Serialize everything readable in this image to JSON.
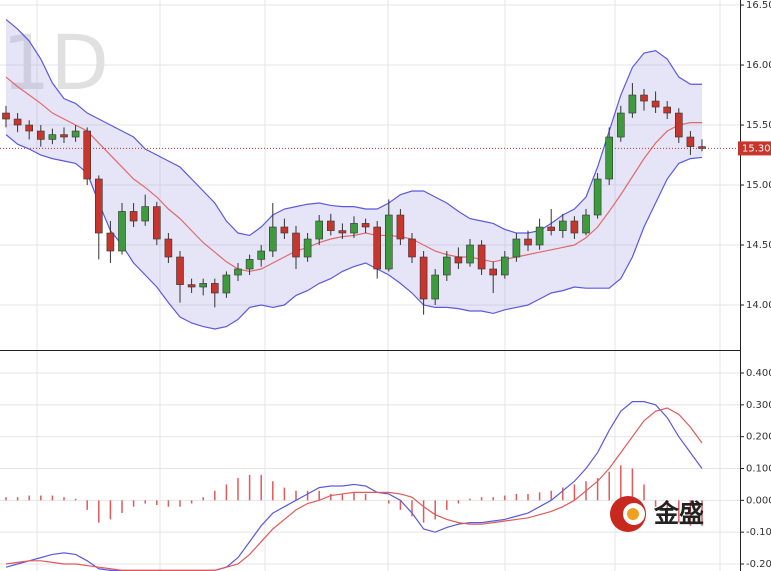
{
  "chart_data": {
    "type": "candlestick",
    "watermark": "1D",
    "logo_text": "金盛",
    "up_color": "#3d9a3d",
    "down_color": "#c8352c",
    "band_color": "#5a5ae0",
    "band_fill": "rgba(160,160,225,0.28)",
    "middle_color": "#e06a6a",
    "ylim": [
      13.625,
      16.542
    ],
    "yticks": [
      {
        "value": 14.0,
        "label": "14.00"
      },
      {
        "value": 14.5,
        "label": "14.50"
      },
      {
        "value": 15.0,
        "label": "15.00"
      },
      {
        "value": 15.5,
        "label": "15.50"
      },
      {
        "value": 16.0,
        "label": "16.00"
      },
      {
        "value": 16.5,
        "label": "16.50"
      }
    ],
    "grid": true,
    "last_price": 15.305,
    "candles": [
      [
        15.6,
        15.66,
        15.48,
        15.55
      ],
      [
        15.55,
        15.6,
        15.44,
        15.5
      ],
      [
        15.5,
        15.54,
        15.38,
        15.45
      ],
      [
        15.45,
        15.5,
        15.32,
        15.38
      ],
      [
        15.38,
        15.47,
        15.34,
        15.42
      ],
      [
        15.42,
        15.48,
        15.35,
        15.4
      ],
      [
        15.4,
        15.5,
        15.36,
        15.45
      ],
      [
        15.45,
        15.48,
        15.0,
        15.05
      ],
      [
        15.05,
        15.08,
        14.38,
        14.6
      ],
      [
        14.6,
        14.7,
        14.35,
        14.45
      ],
      [
        14.45,
        14.85,
        14.42,
        14.78
      ],
      [
        14.78,
        14.85,
        14.65,
        14.7
      ],
      [
        14.7,
        14.92,
        14.66,
        14.82
      ],
      [
        14.82,
        14.86,
        14.5,
        14.55
      ],
      [
        14.55,
        14.6,
        14.35,
        14.4
      ],
      [
        14.4,
        14.45,
        14.02,
        14.17
      ],
      [
        14.17,
        14.22,
        14.1,
        14.15
      ],
      [
        14.15,
        14.22,
        14.08,
        14.18
      ],
      [
        14.18,
        14.22,
        13.98,
        14.1
      ],
      [
        14.1,
        14.28,
        14.06,
        14.25
      ],
      [
        14.25,
        14.35,
        14.2,
        14.3
      ],
      [
        14.3,
        14.42,
        14.25,
        14.38
      ],
      [
        14.38,
        14.5,
        14.32,
        14.45
      ],
      [
        14.45,
        14.85,
        14.4,
        14.65
      ],
      [
        14.65,
        14.72,
        14.55,
        14.6
      ],
      [
        14.6,
        14.66,
        14.3,
        14.4
      ],
      [
        14.4,
        14.6,
        14.36,
        14.55
      ],
      [
        14.55,
        14.75,
        14.5,
        14.7
      ],
      [
        14.7,
        14.76,
        14.58,
        14.62
      ],
      [
        14.62,
        14.68,
        14.55,
        14.6
      ],
      [
        14.6,
        14.74,
        14.56,
        14.68
      ],
      [
        14.68,
        14.72,
        14.6,
        14.65
      ],
      [
        14.65,
        14.7,
        14.22,
        14.3
      ],
      [
        14.3,
        14.88,
        14.28,
        14.75
      ],
      [
        14.75,
        14.8,
        14.5,
        14.55
      ],
      [
        14.55,
        14.6,
        14.35,
        14.4
      ],
      [
        14.4,
        14.45,
        13.92,
        14.05
      ],
      [
        14.05,
        14.3,
        14.0,
        14.25
      ],
      [
        14.25,
        14.45,
        14.2,
        14.4
      ],
      [
        14.4,
        14.48,
        14.3,
        14.35
      ],
      [
        14.35,
        14.55,
        14.32,
        14.5
      ],
      [
        14.5,
        14.54,
        14.25,
        14.3
      ],
      [
        14.3,
        14.36,
        14.1,
        14.25
      ],
      [
        14.25,
        14.45,
        14.22,
        14.4
      ],
      [
        14.4,
        14.6,
        14.36,
        14.55
      ],
      [
        14.55,
        14.62,
        14.45,
        14.5
      ],
      [
        14.5,
        14.72,
        14.46,
        14.65
      ],
      [
        14.65,
        14.8,
        14.58,
        14.62
      ],
      [
        14.62,
        14.76,
        14.56,
        14.7
      ],
      [
        14.7,
        14.74,
        14.55,
        14.6
      ],
      [
        14.6,
        14.8,
        14.58,
        14.75
      ],
      [
        14.75,
        15.1,
        14.72,
        15.05
      ],
      [
        15.05,
        15.48,
        15.0,
        15.4
      ],
      [
        15.4,
        15.66,
        15.36,
        15.6
      ],
      [
        15.6,
        15.85,
        15.56,
        15.75
      ],
      [
        15.75,
        15.8,
        15.62,
        15.7
      ],
      [
        15.7,
        15.78,
        15.6,
        15.65
      ],
      [
        15.65,
        15.7,
        15.55,
        15.6
      ],
      [
        15.6,
        15.64,
        15.35,
        15.4
      ],
      [
        15.4,
        15.45,
        15.25,
        15.32
      ],
      [
        15.32,
        15.38,
        15.28,
        15.305
      ]
    ],
    "upper": [
      16.38,
      16.3,
      16.2,
      16.05,
      15.85,
      15.72,
      15.68,
      15.6,
      15.55,
      15.5,
      15.45,
      15.4,
      15.3,
      15.25,
      15.2,
      15.15,
      15.05,
      14.95,
      14.85,
      14.7,
      14.6,
      14.58,
      14.65,
      14.75,
      14.8,
      14.82,
      14.84,
      14.85,
      14.83,
      14.82,
      14.82,
      14.8,
      14.8,
      14.85,
      14.92,
      14.95,
      14.95,
      14.9,
      14.85,
      14.78,
      14.72,
      14.7,
      14.68,
      14.63,
      14.6,
      14.6,
      14.62,
      14.68,
      14.75,
      14.8,
      14.9,
      15.15,
      15.45,
      15.75,
      15.98,
      16.1,
      16.12,
      16.05,
      15.9,
      15.84,
      15.84
    ],
    "middle": [
      15.9,
      15.82,
      15.75,
      15.68,
      15.6,
      15.55,
      15.5,
      15.45,
      15.35,
      15.25,
      15.15,
      15.05,
      14.98,
      14.9,
      14.8,
      14.72,
      14.62,
      14.52,
      14.44,
      14.36,
      14.3,
      14.28,
      14.3,
      14.35,
      14.4,
      14.45,
      14.48,
      14.52,
      14.55,
      14.57,
      14.58,
      14.6,
      14.58,
      14.58,
      14.57,
      14.55,
      14.5,
      14.45,
      14.42,
      14.4,
      14.4,
      14.38,
      14.36,
      14.38,
      14.4,
      14.42,
      14.44,
      14.46,
      14.48,
      14.5,
      14.56,
      14.65,
      14.78,
      14.92,
      15.07,
      15.22,
      15.35,
      15.45,
      15.5,
      15.52,
      15.52
    ],
    "lower": [
      15.42,
      15.34,
      15.3,
      15.25,
      15.22,
      15.2,
      15.18,
      15.1,
      14.85,
      14.62,
      14.5,
      14.35,
      14.25,
      14.15,
      14.02,
      13.9,
      13.85,
      13.82,
      13.8,
      13.82,
      13.88,
      13.98,
      14.0,
      13.98,
      14.0,
      14.08,
      14.12,
      14.18,
      14.22,
      14.28,
      14.32,
      14.35,
      14.3,
      14.25,
      14.18,
      14.1,
      14.0,
      13.98,
      13.98,
      13.97,
      13.95,
      13.95,
      13.93,
      13.96,
      13.98,
      14.0,
      14.05,
      14.1,
      14.12,
      14.15,
      14.14,
      14.14,
      14.14,
      14.22,
      14.4,
      14.65,
      14.85,
      15.05,
      15.18,
      15.22,
      15.23
    ],
    "macd": {
      "ylim": [
        -0.222,
        0.466
      ],
      "yticks": [
        {
          "value": 0.4,
          "label": "0.400"
        },
        {
          "value": 0.3,
          "label": "0.300"
        },
        {
          "value": 0.2,
          "label": "0.200"
        },
        {
          "value": 0.1,
          "label": "0.100"
        },
        {
          "value": 0.0,
          "label": "0.000"
        },
        {
          "value": -0.1,
          "label": "-0.100"
        },
        {
          "value": -0.2,
          "label": "-0.200"
        }
      ],
      "dif_color": "#5a5ae0",
      "dea_color": "#e05a5a",
      "hist_color": "#e05a5a",
      "dif": [
        -0.21,
        -0.2,
        -0.19,
        -0.18,
        -0.17,
        -0.165,
        -0.17,
        -0.19,
        -0.215,
        -0.22,
        -0.22,
        -0.22,
        -0.22,
        -0.22,
        -0.22,
        -0.22,
        -0.22,
        -0.22,
        -0.22,
        -0.21,
        -0.18,
        -0.13,
        -0.08,
        -0.04,
        -0.02,
        0.0,
        0.02,
        0.04,
        0.045,
        0.045,
        0.05,
        0.045,
        0.025,
        0.02,
        0.0,
        -0.04,
        -0.09,
        -0.1,
        -0.085,
        -0.075,
        -0.07,
        -0.07,
        -0.065,
        -0.06,
        -0.05,
        -0.04,
        -0.02,
        0.0,
        0.03,
        0.06,
        0.1,
        0.15,
        0.22,
        0.28,
        0.31,
        0.31,
        0.3,
        0.26,
        0.2,
        0.15,
        0.1
      ],
      "dea": [
        -0.2,
        -0.195,
        -0.19,
        -0.19,
        -0.195,
        -0.2,
        -0.2,
        -0.205,
        -0.21,
        -0.215,
        -0.22,
        -0.22,
        -0.22,
        -0.22,
        -0.22,
        -0.22,
        -0.22,
        -0.22,
        -0.22,
        -0.21,
        -0.2,
        -0.17,
        -0.13,
        -0.09,
        -0.06,
        -0.03,
        -0.01,
        0.0,
        0.015,
        0.02,
        0.025,
        0.025,
        0.025,
        0.025,
        0.02,
        0.01,
        -0.02,
        -0.045,
        -0.06,
        -0.07,
        -0.075,
        -0.075,
        -0.07,
        -0.065,
        -0.06,
        -0.055,
        -0.045,
        -0.035,
        -0.02,
        0.0,
        0.03,
        0.06,
        0.1,
        0.15,
        0.2,
        0.25,
        0.28,
        0.29,
        0.27,
        0.23,
        0.18
      ],
      "hist": [
        0.01,
        0.01,
        0.015,
        0.015,
        0.015,
        0.01,
        0.005,
        -0.03,
        -0.07,
        -0.06,
        -0.04,
        -0.02,
        -0.01,
        -0.015,
        -0.02,
        -0.02,
        -0.01,
        0.01,
        0.03,
        0.05,
        0.07,
        0.08,
        0.08,
        0.06,
        0.04,
        0.03,
        0.03,
        0.03,
        0.02,
        0.02,
        0.025,
        0.02,
        0.0,
        -0.01,
        -0.03,
        -0.05,
        -0.07,
        -0.06,
        -0.03,
        -0.01,
        0.005,
        0.01,
        0.01,
        0.015,
        0.02,
        0.02,
        0.025,
        0.03,
        0.04,
        0.05,
        0.06,
        0.07,
        0.09,
        0.11,
        0.1,
        0.05,
        -0.02,
        -0.05,
        -0.07,
        -0.08,
        -0.08
      ]
    }
  }
}
